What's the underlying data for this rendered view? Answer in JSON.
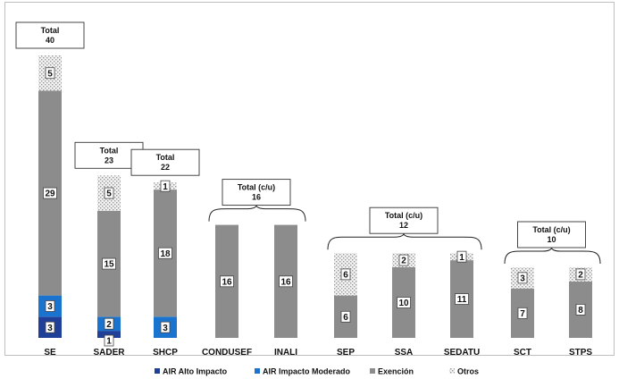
{
  "chart_data": {
    "type": "bar",
    "stacked": true,
    "categories": [
      "SE",
      "SADER",
      "SHCP",
      "CONDUSEF",
      "INALI",
      "SEP",
      "SSA",
      "SEDATU",
      "SCT",
      "STPS"
    ],
    "series": [
      {
        "name": "AIR Alto Impacto",
        "color": "#1f3f99",
        "values": [
          3,
          1,
          0,
          0,
          0,
          0,
          0,
          0,
          0,
          0
        ]
      },
      {
        "name": "AIR Impacto Moderado",
        "color": "#1a74cf",
        "values": [
          3,
          2,
          3,
          0,
          0,
          0,
          0,
          0,
          0,
          0
        ]
      },
      {
        "name": "Exención",
        "color": "#8c8c8c",
        "values": [
          29,
          15,
          18,
          16,
          16,
          6,
          10,
          11,
          7,
          8
        ]
      },
      {
        "name": "Otros",
        "color": "#d9d9d9",
        "pattern": "dots",
        "values": [
          5,
          5,
          1,
          0,
          0,
          6,
          2,
          1,
          3,
          2
        ]
      }
    ],
    "totals": [
      {
        "label": "Total",
        "value": "40",
        "categories": [
          "SE"
        ]
      },
      {
        "label": "Total",
        "value": "23",
        "categories": [
          "SADER"
        ]
      },
      {
        "label": "Total",
        "value": "22",
        "categories": [
          "SHCP"
        ]
      },
      {
        "label": "Total (c/u)",
        "value": "16",
        "categories": [
          "CONDUSEF",
          "INALI"
        ]
      },
      {
        "label": "Total (c/u)",
        "value": "12",
        "categories": [
          "SEP",
          "SSA",
          "SEDATU"
        ]
      },
      {
        "label": "Total (c/u)",
        "value": "10",
        "categories": [
          "SCT",
          "STPS"
        ]
      }
    ],
    "ylim": [
      0,
      40
    ],
    "grid": false,
    "legend_position": "bottom"
  }
}
